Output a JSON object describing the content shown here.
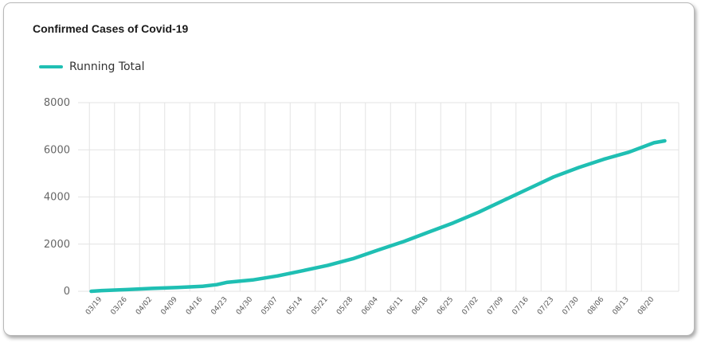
{
  "chart_data": {
    "type": "line",
    "title": "Confirmed Cases of Covid-19",
    "xlabel": "",
    "ylabel": "",
    "ylim": [
      0,
      8000
    ],
    "yticks": [
      0,
      2000,
      4000,
      6000,
      8000
    ],
    "grid": true,
    "legend_position": "top-left",
    "x_tick_labels": [
      "03/19",
      "03/26",
      "04/02",
      "04/09",
      "04/16",
      "04/23",
      "04/30",
      "05/07",
      "05/14",
      "05/21",
      "05/28",
      "06/04",
      "06/11",
      "06/18",
      "06/25",
      "07/02",
      "07/09",
      "07/16",
      "07/23",
      "07/30",
      "08/06",
      "08/13",
      "08/20"
    ],
    "series": [
      {
        "name": "Running Total",
        "color": "#1fbfb3",
        "x": [
          "03/16",
          "03/19",
          "03/26",
          "04/02",
          "04/09",
          "04/16",
          "04/20",
          "04/23",
          "04/30",
          "05/07",
          "05/14",
          "05/21",
          "05/28",
          "06/04",
          "06/11",
          "06/18",
          "06/25",
          "07/02",
          "07/09",
          "07/16",
          "07/23",
          "07/30",
          "08/06",
          "08/13",
          "08/20",
          "08/23"
        ],
        "values": [
          0,
          30,
          70,
          120,
          160,
          210,
          280,
          380,
          480,
          650,
          870,
          1100,
          1380,
          1750,
          2100,
          2500,
          2900,
          3350,
          3850,
          4350,
          4850,
          5250,
          5600,
          5900,
          6300,
          6380
        ]
      }
    ]
  }
}
